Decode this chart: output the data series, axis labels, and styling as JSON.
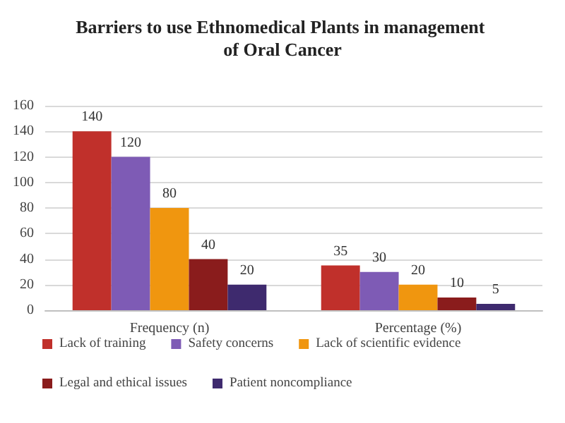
{
  "chart_data": {
    "type": "bar",
    "title": "Barriers to use Ethnomedical Plants in management of Oral Cancer",
    "categories": [
      "Frequency (n)",
      "Percentage (%)"
    ],
    "series": [
      {
        "name": "Lack of training",
        "color": "#c0302b",
        "values": [
          140,
          35
        ]
      },
      {
        "name": "Safety concerns",
        "color": "#7e5bb5",
        "values": [
          120,
          30
        ]
      },
      {
        "name": "Lack of scientific evidence",
        "color": "#f0960f",
        "values": [
          80,
          20
        ]
      },
      {
        "name": "Legal and ethical issues",
        "color": "#8a1c1c",
        "values": [
          40,
          10
        ]
      },
      {
        "name": "Patient noncompliance",
        "color": "#3e2a6e",
        "values": [
          20,
          5
        ]
      }
    ],
    "ylim": [
      0,
      160
    ],
    "yticks": [
      0,
      20,
      40,
      60,
      80,
      100,
      120,
      140,
      160
    ],
    "grid": "y",
    "legend": "bottom",
    "data_labels": true
  }
}
